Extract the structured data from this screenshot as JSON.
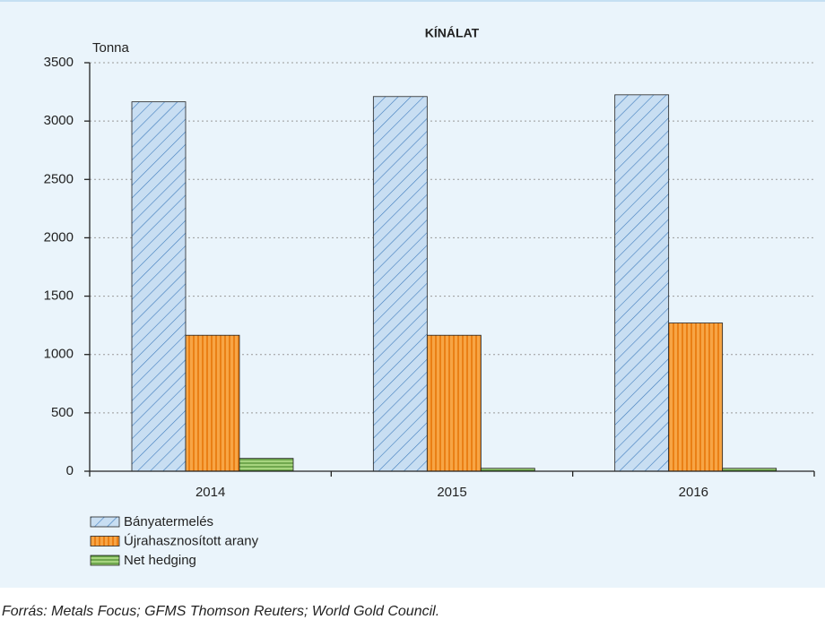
{
  "chart_data": {
    "type": "bar",
    "title": "KÍNÁLAT",
    "y_label": "Tonna",
    "categories": [
      "2014",
      "2015",
      "2016"
    ],
    "series": [
      {
        "name": "Bányatermelés",
        "color": "#c8def2",
        "values": [
          3165,
          3210,
          3225
        ]
      },
      {
        "name": "Újrahasznosított arany",
        "color": "#f7a545",
        "values": [
          1165,
          1165,
          1270
        ]
      },
      {
        "name": "Net hedging",
        "color": "#a6d47e",
        "values": [
          110,
          25,
          25
        ]
      }
    ],
    "ylim": [
      0,
      3500
    ],
    "yticks": [
      0,
      500,
      1000,
      1500,
      2000,
      2500,
      3000,
      3500
    ],
    "grid": true,
    "source": "Forrás: Metals Focus; GFMS Thomson Reuters; World Gold Council."
  }
}
